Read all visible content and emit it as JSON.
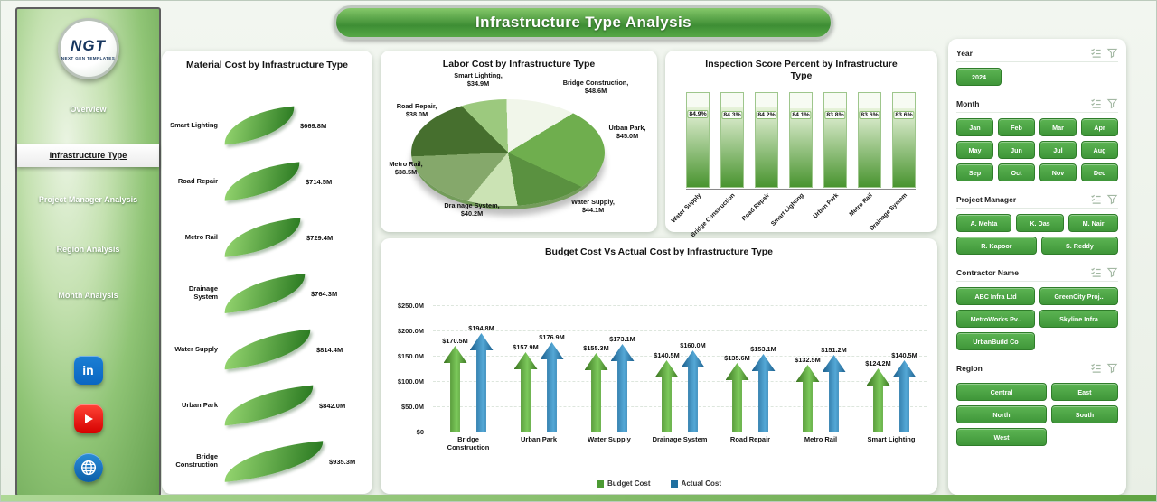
{
  "header": {
    "title": "Infrastructure Type Analysis"
  },
  "sidebar": {
    "logo_text": "NGT",
    "logo_subtext": "NEXT GEN TEMPLATES",
    "items": [
      {
        "label": "Overview",
        "active": false
      },
      {
        "label": "Infrastructure Type",
        "active": true
      },
      {
        "label": "Project Manager Analysis",
        "active": false
      },
      {
        "label": "Region Analysis",
        "active": false
      },
      {
        "label": "Month Analysis",
        "active": false
      }
    ],
    "social_icons": [
      "linkedin-icon",
      "youtube-icon",
      "globe-icon"
    ]
  },
  "colors": {
    "accent": "#3f9639",
    "pie_slices": [
      "#9cc97e",
      "#f1f6ea",
      "#6fae4e",
      "#5a9140",
      "#cbe3b4",
      "#85a86b",
      "#466f2e"
    ],
    "leaf_gradient": [
      "#90d16c",
      "#2e7d24"
    ],
    "inspection_fill": [
      "#e7f3da",
      "#49942f"
    ],
    "budget_bar": [
      "#7cc95b",
      "#3a7420"
    ],
    "actual_bar": [
      "#54a8d6",
      "#1b5e8c"
    ],
    "budget_legend": "#4c9a33",
    "actual_legend": "#1f6f9f"
  },
  "chart_data": [
    {
      "type": "bar",
      "orientation": "horizontal",
      "title": "Material Cost by Infrastructure Type",
      "categories": [
        "Smart Lighting",
        "Road Repair",
        "Metro Rail",
        "Drainage System",
        "Water Supply",
        "Urban Park",
        "Bridge Construction"
      ],
      "values": [
        669.8,
        714.5,
        729.4,
        764.3,
        814.4,
        842.0,
        935.3
      ],
      "labels": [
        "$669.8M",
        "$714.5M",
        "$729.4M",
        "$764.3M",
        "$814.4M",
        "$842.0M",
        "$935.3M"
      ],
      "unit": "M USD"
    },
    {
      "type": "pie",
      "title": "Labor Cost by Infrastructure Type",
      "categories": [
        "Smart Lighting",
        "Bridge Construction",
        "Urban Park",
        "Water Supply",
        "Drainage System",
        "Metro Rail",
        "Road Repair"
      ],
      "values": [
        34.9,
        48.6,
        45.0,
        44.1,
        40.2,
        38.5,
        38.0
      ],
      "labels": [
        "$34.9M",
        "$48.6M",
        "$45.0M",
        "$44.1M",
        "$40.2M",
        "$38.5M",
        "$38.0M"
      ],
      "unit": "M USD"
    },
    {
      "type": "bar",
      "orientation": "vertical",
      "title": "Inspection Score Percent by Infrastructure Type",
      "categories": [
        "Water Supply",
        "Bridge Construction",
        "Road Repair",
        "Smart Lighting",
        "Urban Park",
        "Metro Rail",
        "Drainage System"
      ],
      "values": [
        84.9,
        84.3,
        84.2,
        84.1,
        83.8,
        83.6,
        83.6
      ],
      "labels": [
        "84.9%",
        "84.3%",
        "84.2%",
        "84.1%",
        "83.8%",
        "83.6%",
        "83.6%"
      ],
      "ylim": [
        0,
        100
      ]
    },
    {
      "type": "bar",
      "orientation": "vertical",
      "title": "Budget Cost Vs Actual Cost by Infrastructure Type",
      "categories": [
        "Bridge Construction",
        "Urban Park",
        "Water Supply",
        "Drainage System",
        "Road Repair",
        "Metro Rail",
        "Smart Lighting"
      ],
      "series": [
        {
          "name": "Budget Cost",
          "values": [
            170.5,
            157.9,
            155.3,
            140.5,
            135.6,
            132.5,
            124.2
          ],
          "labels": [
            "$170.5M",
            "$157.9M",
            "$155.3M",
            "$140.5M",
            "$135.6M",
            "$132.5M",
            "$124.2M"
          ]
        },
        {
          "name": "Actual Cost",
          "values": [
            194.8,
            176.9,
            173.1,
            160.0,
            153.1,
            151.2,
            140.5
          ],
          "labels": [
            "$194.8M",
            "$176.9M",
            "$173.1M",
            "$160.0M",
            "$153.1M",
            "$151.2M",
            "$140.5M"
          ]
        }
      ],
      "y_ticks": [
        "$0",
        "$50.0M",
        "$100.0M",
        "$150.0M",
        "$200.0M",
        "$250.0M"
      ],
      "ylim": [
        0,
        250
      ],
      "legend": [
        "Budget Cost",
        "Actual Cost"
      ],
      "legend_position": "bottom"
    }
  ],
  "filters": {
    "year": {
      "label": "Year",
      "options": [
        "2024"
      ]
    },
    "month": {
      "label": "Month",
      "options": [
        "Jan",
        "Feb",
        "Mar",
        "Apr",
        "May",
        "Jun",
        "Jul",
        "Aug",
        "Sep",
        "Oct",
        "Nov",
        "Dec"
      ]
    },
    "project_manager": {
      "label": "Project Manager",
      "options": [
        "A. Mehta",
        "K. Das",
        "M. Nair",
        "R. Kapoor",
        "S. Reddy"
      ]
    },
    "contractor": {
      "label": "Contractor Name",
      "options": [
        "ABC Infra Ltd",
        "GreenCity Proj..",
        "MetroWorks Pv..",
        "Skyline Infra",
        "UrbanBuild Co"
      ]
    },
    "region": {
      "label": "Region",
      "options": [
        "Central",
        "East",
        "North",
        "South",
        "West"
      ]
    }
  }
}
